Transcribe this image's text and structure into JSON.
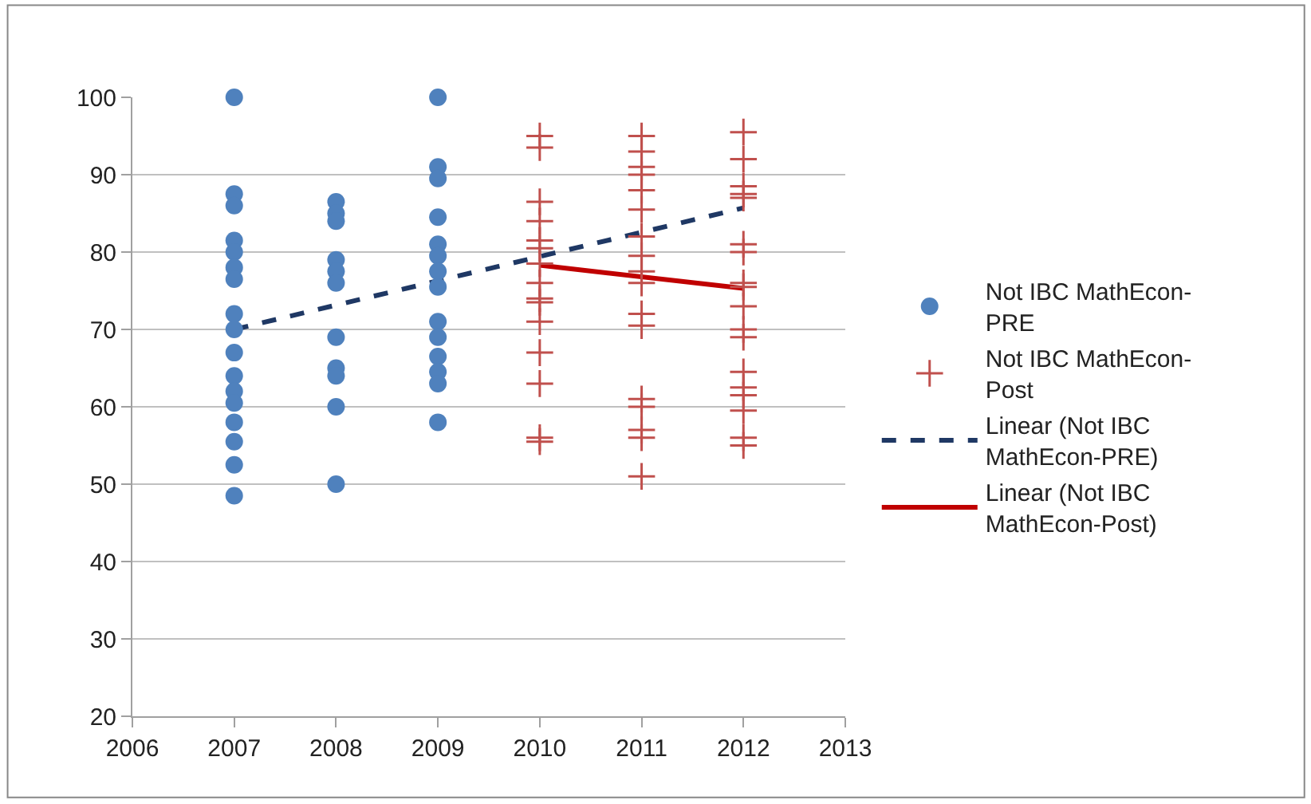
{
  "chart_data": {
    "type": "scatter",
    "xlim": [
      2006,
      2013
    ],
    "xticks": [
      2006,
      2007,
      2008,
      2009,
      2010,
      2011,
      2012,
      2013
    ],
    "ylim": [
      20,
      100
    ],
    "yticks": [
      20,
      30,
      40,
      50,
      60,
      70,
      80,
      90,
      100
    ],
    "grid": "y",
    "legend": "right",
    "series": [
      {
        "name": "Not IBC MathEcon-PRE",
        "marker": "circle",
        "color": "#4f81bd",
        "x": [
          2007,
          2007,
          2007,
          2007,
          2007,
          2007,
          2007,
          2007,
          2007,
          2007,
          2007,
          2007,
          2007,
          2007,
          2007,
          2007,
          2007,
          2008,
          2008,
          2008,
          2008,
          2008,
          2008,
          2008,
          2008,
          2008,
          2008,
          2008,
          2009,
          2009,
          2009,
          2009,
          2009,
          2009,
          2009,
          2009,
          2009,
          2009,
          2009,
          2009,
          2009,
          2009
        ],
        "values": [
          100,
          87.5,
          86,
          81.5,
          80,
          78,
          76.5,
          72,
          70,
          67,
          64,
          62,
          60.5,
          58,
          55.5,
          52.5,
          48.5,
          86.5,
          85,
          84,
          79,
          77.5,
          76,
          69,
          65,
          64,
          60,
          50,
          100,
          91,
          89.5,
          84.5,
          81,
          79.5,
          77.5,
          75.5,
          71,
          69,
          66.5,
          64.5,
          63,
          58
        ]
      },
      {
        "name": "Not IBC MathEcon-Post",
        "marker": "cross",
        "color": "#c0504d",
        "x": [
          2010,
          2010,
          2010,
          2010,
          2010,
          2010,
          2010,
          2010,
          2010,
          2010,
          2010,
          2010,
          2010,
          2010,
          2010,
          2011,
          2011,
          2011,
          2011,
          2011,
          2011,
          2011,
          2011,
          2011,
          2011,
          2011,
          2011,
          2011,
          2011,
          2011,
          2011,
          2011,
          2012,
          2012,
          2012,
          2012,
          2012,
          2012,
          2012,
          2012,
          2012,
          2012,
          2012,
          2012,
          2012,
          2012,
          2012,
          2012,
          2012,
          2012
        ],
        "values": [
          95,
          93.5,
          86.5,
          84,
          81.5,
          80.5,
          78.5,
          76,
          74,
          73.5,
          71,
          67,
          63,
          56,
          55.5,
          95,
          93,
          91,
          90,
          88,
          85.5,
          82,
          79.5,
          77.5,
          76,
          72,
          70.5,
          61,
          60,
          57,
          56,
          51,
          95.5,
          92,
          88.5,
          87.5,
          87,
          81,
          80,
          76,
          75.5,
          73,
          70,
          69,
          64.5,
          62.5,
          61.5,
          59.5,
          56,
          55
        ]
      },
      {
        "name": "Linear (Not IBC MathEcon-PRE)",
        "type": "line",
        "marker": "none",
        "line_style": "dashed",
        "color": "#1f3864",
        "x": [
          2007,
          2012
        ],
        "values": [
          70,
          85.7
        ]
      },
      {
        "name": "Linear (Not IBC MathEcon-Post)",
        "type": "line",
        "marker": "none",
        "line_style": "solid",
        "color": "#c00000",
        "x": [
          2010,
          2012
        ],
        "values": [
          78.3,
          75.3
        ]
      }
    ]
  }
}
